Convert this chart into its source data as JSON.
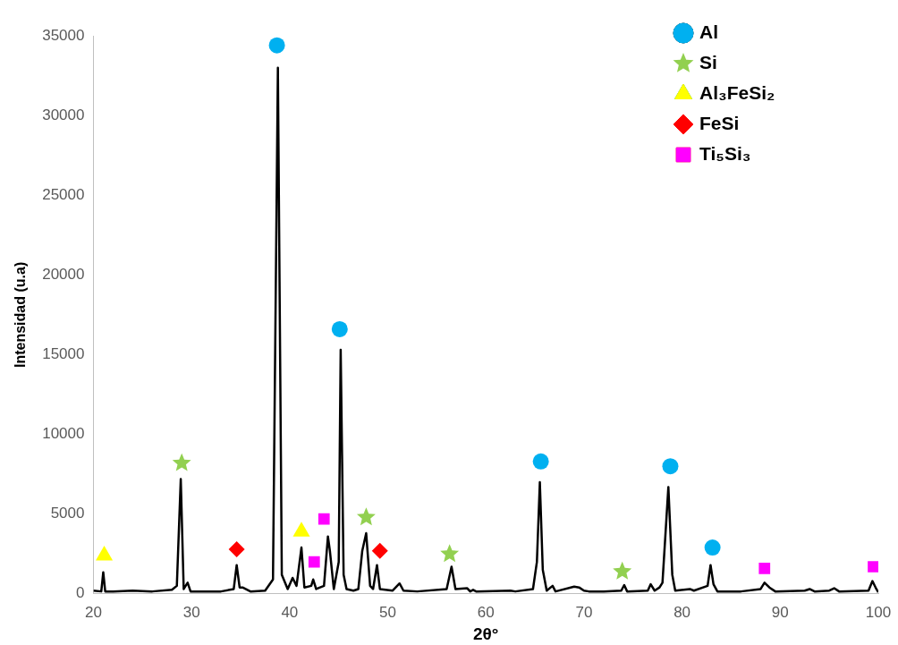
{
  "chart_data": {
    "type": "line",
    "xlabel": "2θ°",
    "ylabel": "Intensidad (u.a)",
    "xlim": [
      20,
      100
    ],
    "xticks": [
      20,
      30,
      40,
      50,
      60,
      70,
      80,
      90,
      100
    ],
    "ylim": [
      0,
      35000
    ],
    "yticks": [
      0,
      5000,
      10000,
      15000,
      20000,
      25000,
      30000,
      35000
    ],
    "grid": false,
    "legend": "top right",
    "series": [
      {
        "color": "#000000",
        "marker": "none",
        "x": [
          20.0,
          20.8,
          21.0,
          21.2,
          22,
          24,
          26,
          28,
          28.5,
          28.9,
          29.2,
          29.6,
          29.9,
          33,
          34.3,
          34.6,
          34.9,
          35.2,
          36,
          37.5,
          38.3,
          38.8,
          39.2,
          39.8,
          40.3,
          40.7,
          41.2,
          41.5,
          42.2,
          42.4,
          42.7,
          43.5,
          43.9,
          44.1,
          44.5,
          45.0,
          45.2,
          45.5,
          45.8,
          46.5,
          47.0,
          47.4,
          47.8,
          48.2,
          48.5,
          48.9,
          49.2,
          50.5,
          51.2,
          51.6,
          53,
          56.0,
          56.5,
          56.9,
          58.1,
          58.4,
          58.7,
          59,
          62.5,
          63,
          64.8,
          65.2,
          65.5,
          65.8,
          66.2,
          66.8,
          67.1,
          69,
          69.5,
          70,
          70.5,
          72,
          73.8,
          74.1,
          74.4,
          76.5,
          76.8,
          77.2,
          77.7,
          78.0,
          78.6,
          79.0,
          79.3,
          80.8,
          81.2,
          82.6,
          82.9,
          83.2,
          83.6,
          86,
          88.0,
          88.4,
          88.9,
          89.5,
          92.5,
          93,
          93.5,
          95,
          95.5,
          96,
          99,
          99.4,
          99.8,
          100
        ],
        "values": [
          200,
          150,
          1350,
          150,
          150,
          200,
          150,
          250,
          500,
          7200,
          300,
          700,
          150,
          150,
          300,
          1800,
          400,
          400,
          150,
          200,
          900,
          33000,
          1200,
          300,
          1000,
          500,
          2900,
          400,
          500,
          900,
          300,
          500,
          3600,
          2700,
          300,
          2000,
          15300,
          1200,
          300,
          200,
          300,
          2700,
          3800,
          500,
          300,
          1800,
          300,
          200,
          650,
          200,
          150,
          300,
          1700,
          300,
          350,
          150,
          250,
          150,
          200,
          150,
          300,
          2000,
          7000,
          1500,
          200,
          500,
          150,
          450,
          400,
          200,
          150,
          150,
          200,
          550,
          150,
          200,
          600,
          200,
          400,
          700,
          6700,
          1200,
          200,
          300,
          200,
          500,
          1800,
          600,
          150,
          150,
          300,
          700,
          400,
          150,
          200,
          300,
          150,
          200,
          350,
          150,
          200,
          800,
          300,
          100
        ]
      },
      {
        "type": "scatter",
        "name": "Al",
        "color": "#00b0f0",
        "marker": "circle",
        "x": [
          38.7,
          45.1,
          65.6,
          78.8,
          83.1
        ],
        "values": [
          34400,
          16600,
          8300,
          8000,
          2900
        ]
      },
      {
        "type": "scatter",
        "name": "Si",
        "color": "#92d050",
        "marker": "star",
        "x": [
          29.0,
          47.8,
          56.3,
          73.9
        ],
        "values": [
          8200,
          4800,
          2500,
          1400
        ]
      },
      {
        "type": "scatter",
        "name": "Al₃FeSi₂",
        "color": "#ffff00",
        "marker": "triangle",
        "x": [
          21.1,
          41.2
        ],
        "values": [
          2400,
          3900
        ]
      },
      {
        "type": "scatter",
        "name": "FeSi",
        "color": "#ff0000",
        "marker": "diamond",
        "x": [
          34.6,
          49.2
        ],
        "values": [
          2800,
          2700
        ]
      },
      {
        "type": "scatter",
        "name": "Ti₅Si₃",
        "color": "#ff00ff",
        "marker": "square",
        "x": [
          42.5,
          43.5,
          88.4,
          99.5
        ],
        "values": [
          2000,
          4700,
          1600,
          1700
        ]
      }
    ]
  }
}
